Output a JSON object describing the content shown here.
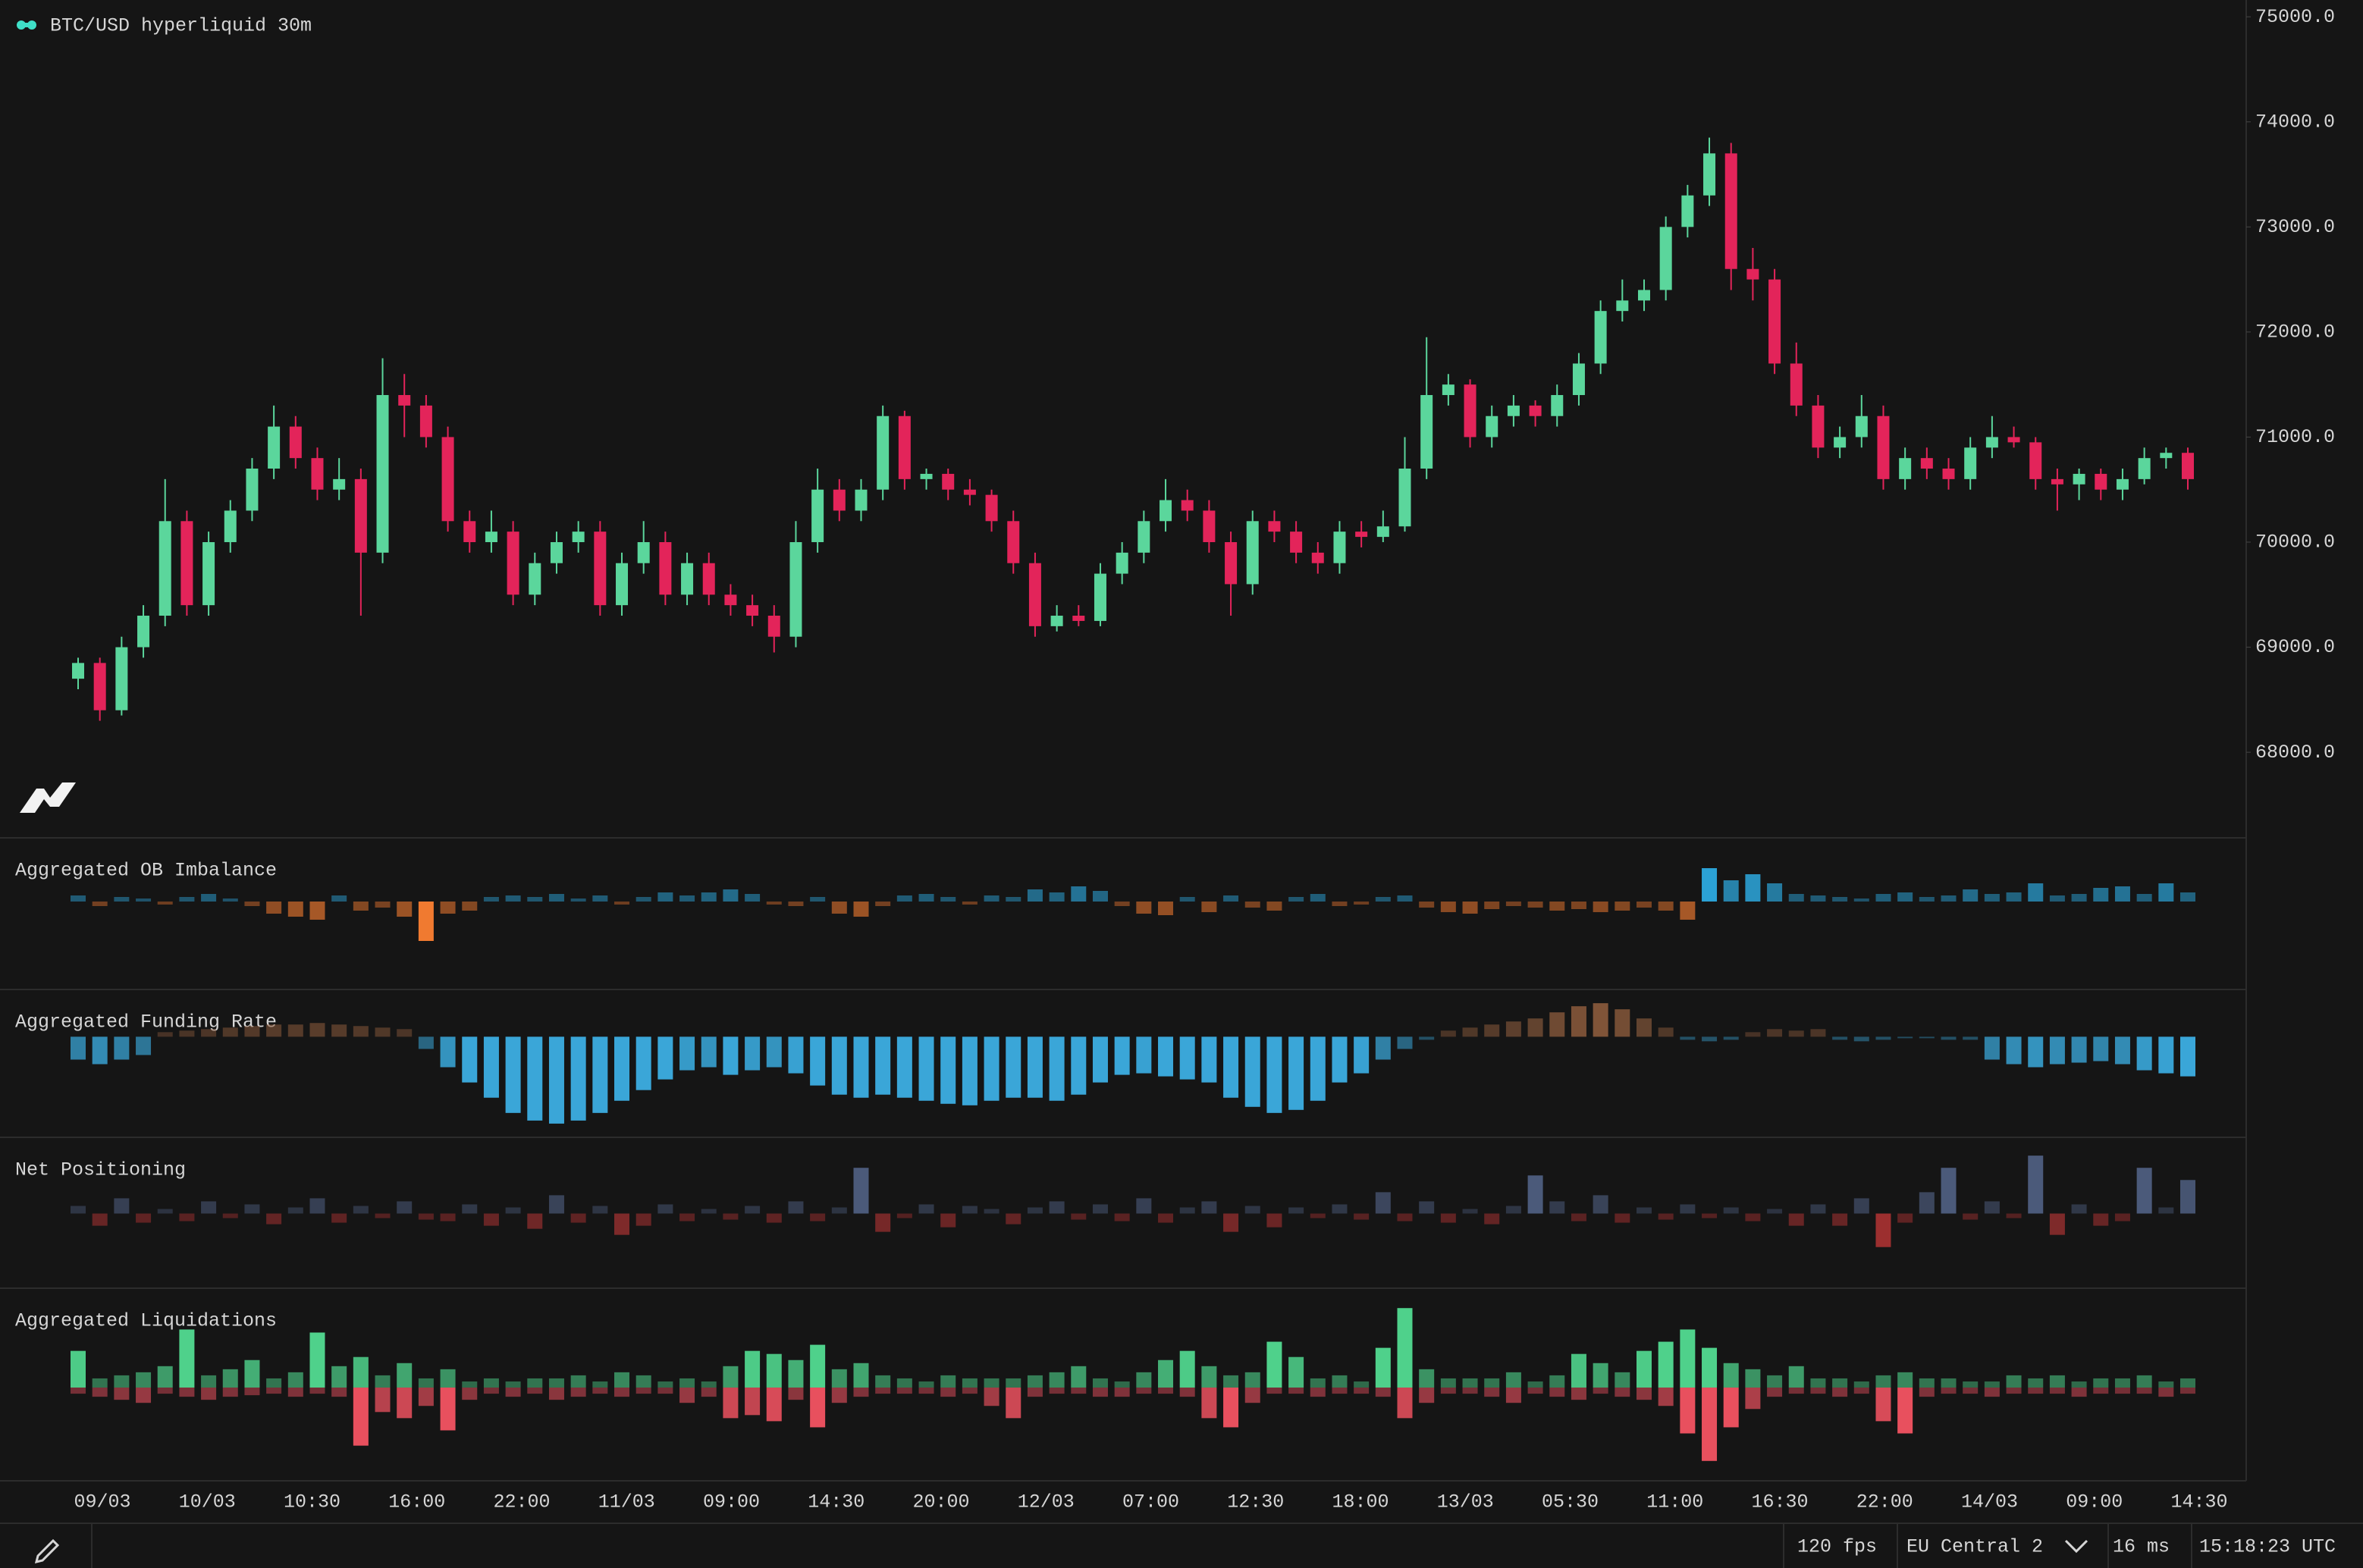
{
  "header": {
    "title": "BTC/USD hyperliquid 30m"
  },
  "status_bar": {
    "fps": "120 fps",
    "region": "EU Central 2",
    "latency": "16 ms",
    "clock": "15:18:23 UTC"
  },
  "chart_data": [
    {
      "type": "candlestick",
      "up_color": "#5bd69c",
      "down_color": "#e3245a",
      "ylim": [
        67200,
        75160
      ],
      "yticks": [
        {
          "value": 68000,
          "label": "68000.0"
        },
        {
          "value": 69000,
          "label": "69000.0"
        },
        {
          "value": 70000,
          "label": "70000.0"
        },
        {
          "value": 71000,
          "label": "71000.0"
        },
        {
          "value": 72000,
          "label": "72000.0"
        },
        {
          "value": 73000,
          "label": "73000.0"
        },
        {
          "value": 74000,
          "label": "74000.0"
        },
        {
          "value": 75000,
          "label": "75000.0"
        }
      ],
      "time_labels": [
        "09/03",
        "10/03",
        "10:30",
        "16:00",
        "22:00",
        "11/03",
        "09:00",
        "14:30",
        "20:00",
        "12/03",
        "07:00",
        "12:30",
        "18:00",
        "13/03",
        "05:30",
        "11:00",
        "16:30",
        "22:00",
        "14/03",
        "09:00",
        "14:30"
      ],
      "candles": [
        [
          68700,
          68900,
          68600,
          68850
        ],
        [
          68850,
          68900,
          68300,
          68400
        ],
        [
          68400,
          69100,
          68350,
          69000
        ],
        [
          69000,
          69400,
          68900,
          69300
        ],
        [
          69300,
          70600,
          69200,
          70200
        ],
        [
          70200,
          70300,
          69300,
          69400
        ],
        [
          69400,
          70100,
          69300,
          70000
        ],
        [
          70000,
          70400,
          69900,
          70300
        ],
        [
          70300,
          70800,
          70200,
          70700
        ],
        [
          70700,
          71300,
          70600,
          71100
        ],
        [
          71100,
          71200,
          70700,
          70800
        ],
        [
          70800,
          70900,
          70400,
          70500
        ],
        [
          70500,
          70800,
          70400,
          70600
        ],
        [
          70600,
          70700,
          69300,
          69900
        ],
        [
          69900,
          71750,
          69800,
          71400
        ],
        [
          71400,
          71600,
          71000,
          71300
        ],
        [
          71300,
          71400,
          70900,
          71000
        ],
        [
          71000,
          71100,
          70100,
          70200
        ],
        [
          70200,
          70300,
          69900,
          70000
        ],
        [
          70000,
          70300,
          69900,
          70100
        ],
        [
          70100,
          70200,
          69400,
          69500
        ],
        [
          69500,
          69900,
          69400,
          69800
        ],
        [
          69800,
          70100,
          69700,
          70000
        ],
        [
          70000,
          70200,
          69900,
          70100
        ],
        [
          70100,
          70200,
          69300,
          69400
        ],
        [
          69400,
          69900,
          69300,
          69800
        ],
        [
          69800,
          70200,
          69700,
          70000
        ],
        [
          70000,
          70100,
          69400,
          69500
        ],
        [
          69500,
          69900,
          69400,
          69800
        ],
        [
          69800,
          69900,
          69400,
          69500
        ],
        [
          69500,
          69600,
          69300,
          69400
        ],
        [
          69400,
          69500,
          69200,
          69300
        ],
        [
          69300,
          69400,
          68950,
          69100
        ],
        [
          69100,
          70200,
          69000,
          70000
        ],
        [
          70000,
          70700,
          69900,
          70500
        ],
        [
          70500,
          70600,
          70200,
          70300
        ],
        [
          70300,
          70600,
          70200,
          70500
        ],
        [
          70500,
          71300,
          70400,
          71200
        ],
        [
          71200,
          71250,
          70500,
          70600
        ],
        [
          70600,
          70700,
          70500,
          70650
        ],
        [
          70650,
          70700,
          70400,
          70500
        ],
        [
          70500,
          70600,
          70350,
          70450
        ],
        [
          70450,
          70500,
          70100,
          70200
        ],
        [
          70200,
          70300,
          69700,
          69800
        ],
        [
          69800,
          69900,
          69100,
          69200
        ],
        [
          69200,
          69400,
          69150,
          69300
        ],
        [
          69300,
          69400,
          69200,
          69250
        ],
        [
          69250,
          69800,
          69200,
          69700
        ],
        [
          69700,
          70000,
          69600,
          69900
        ],
        [
          69900,
          70300,
          69800,
          70200
        ],
        [
          70200,
          70600,
          70100,
          70400
        ],
        [
          70400,
          70500,
          70200,
          70300
        ],
        [
          70300,
          70400,
          69900,
          70000
        ],
        [
          70000,
          70100,
          69300,
          69600
        ],
        [
          69600,
          70300,
          69500,
          70200
        ],
        [
          70200,
          70300,
          70000,
          70100
        ],
        [
          70100,
          70200,
          69800,
          69900
        ],
        [
          69900,
          70000,
          69700,
          69800
        ],
        [
          69800,
          70200,
          69700,
          70100
        ],
        [
          70100,
          70200,
          69950,
          70050
        ],
        [
          70050,
          70300,
          70000,
          70150
        ],
        [
          70150,
          71000,
          70100,
          70700
        ],
        [
          70700,
          71950,
          70600,
          71400
        ],
        [
          71400,
          71600,
          71300,
          71500
        ],
        [
          71500,
          71550,
          70900,
          71000
        ],
        [
          71000,
          71300,
          70900,
          71200
        ],
        [
          71200,
          71400,
          71100,
          71300
        ],
        [
          71300,
          71350,
          71100,
          71200
        ],
        [
          71200,
          71500,
          71100,
          71400
        ],
        [
          71400,
          71800,
          71300,
          71700
        ],
        [
          71700,
          72300,
          71600,
          72200
        ],
        [
          72200,
          72500,
          72100,
          72300
        ],
        [
          72300,
          72500,
          72200,
          72400
        ],
        [
          72400,
          73100,
          72300,
          73000
        ],
        [
          73000,
          73400,
          72900,
          73300
        ],
        [
          73300,
          73850,
          73200,
          73700
        ],
        [
          73700,
          73800,
          72400,
          72600
        ],
        [
          72600,
          72800,
          72300,
          72500
        ],
        [
          72500,
          72600,
          71600,
          71700
        ],
        [
          71700,
          71900,
          71200,
          71300
        ],
        [
          71300,
          71400,
          70800,
          70900
        ],
        [
          70900,
          71100,
          70800,
          71000
        ],
        [
          71000,
          71400,
          70900,
          71200
        ],
        [
          71200,
          71300,
          70500,
          70600
        ],
        [
          70600,
          70900,
          70500,
          70800
        ],
        [
          70800,
          70900,
          70600,
          70700
        ],
        [
          70700,
          70800,
          70500,
          70600
        ],
        [
          70600,
          71000,
          70500,
          70900
        ],
        [
          70900,
          71200,
          70800,
          71000
        ],
        [
          71000,
          71100,
          70900,
          70950
        ],
        [
          70950,
          71000,
          70500,
          70600
        ],
        [
          70600,
          70700,
          70300,
          70550
        ],
        [
          70550,
          70700,
          70400,
          70650
        ],
        [
          70650,
          70700,
          70400,
          70500
        ],
        [
          70500,
          70700,
          70400,
          70600
        ],
        [
          70600,
          70900,
          70550,
          70800
        ],
        [
          70800,
          70900,
          70700,
          70850
        ],
        [
          70850,
          70900,
          70500,
          70600
        ]
      ]
    },
    {
      "type": "bar",
      "title": "Aggregated OB Imbalance",
      "pos_color": "#2eaee6",
      "neg_color": "#f07a30",
      "ylim": [
        -58,
        42
      ],
      "values": [
        4,
        -3,
        3,
        2,
        -2,
        3,
        5,
        2,
        -3,
        -8,
        -10,
        -12,
        4,
        -6,
        -4,
        -10,
        -26,
        -8,
        -6,
        3,
        4,
        3,
        5,
        2,
        4,
        -2,
        3,
        6,
        4,
        6,
        8,
        5,
        -2,
        -3,
        3,
        -8,
        -10,
        -3,
        4,
        5,
        3,
        -2,
        4,
        3,
        8,
        6,
        10,
        7,
        -3,
        -8,
        -9,
        3,
        -7,
        4,
        -4,
        -6,
        3,
        5,
        -3,
        -2,
        3,
        4,
        -4,
        -7,
        -8,
        -5,
        -3,
        -4,
        -6,
        -5,
        -7,
        -6,
        -4,
        -6,
        -12,
        22,
        14,
        18,
        12,
        5,
        4,
        3,
        2,
        5,
        6,
        3,
        4,
        8,
        5,
        6,
        12,
        4,
        5,
        9,
        10,
        5,
        12,
        6
      ]
    },
    {
      "type": "bar",
      "title": "Aggregated Funding Rate",
      "pos_color": "#8a5a3c",
      "neg_color": "#3aa6d8",
      "ylim": [
        -66,
        31
      ],
      "values": [
        -15,
        -18,
        -15,
        -12,
        3,
        4,
        5,
        6,
        7,
        8,
        8,
        9,
        8,
        7,
        6,
        5,
        -8,
        -20,
        -30,
        -40,
        -50,
        -55,
        -57,
        -55,
        -50,
        -42,
        -35,
        -28,
        -22,
        -20,
        -25,
        -22,
        -20,
        -24,
        -32,
        -38,
        -40,
        -38,
        -40,
        -42,
        -44,
        -45,
        -42,
        -40,
        -40,
        -42,
        -38,
        -30,
        -25,
        -24,
        -26,
        -28,
        -30,
        -40,
        -46,
        -50,
        -48,
        -42,
        -30,
        -24,
        -15,
        -8,
        -2,
        4,
        6,
        8,
        10,
        12,
        16,
        20,
        22,
        18,
        12,
        6,
        -2,
        -3,
        -2,
        3,
        5,
        4,
        5,
        -2,
        -3,
        -2,
        -1,
        -1,
        -2,
        -2,
        -15,
        -18,
        -20,
        -18,
        -17,
        -16,
        -18,
        -22,
        -24,
        -26
      ]
    },
    {
      "type": "bar",
      "title": "Net Positioning",
      "pos_color": "#4b5a7a",
      "neg_color": "#a83232",
      "ylim": [
        -49,
        50
      ],
      "values": [
        5,
        -8,
        10,
        -6,
        3,
        -5,
        8,
        -3,
        6,
        -7,
        4,
        10,
        -6,
        5,
        -3,
        8,
        -4,
        -5,
        6,
        -8,
        4,
        -10,
        12,
        -6,
        5,
        -14,
        -8,
        6,
        -5,
        3,
        -4,
        5,
        -6,
        8,
        -5,
        4,
        30,
        -12,
        -3,
        6,
        -9,
        5,
        3,
        -7,
        4,
        8,
        -4,
        6,
        -5,
        10,
        -6,
        4,
        8,
        -12,
        5,
        -9,
        4,
        -3,
        6,
        -4,
        14,
        -5,
        8,
        -6,
        3,
        -7,
        5,
        25,
        8,
        -5,
        12,
        -6,
        4,
        -4,
        6,
        -3,
        4,
        -5,
        3,
        -8,
        6,
        -8,
        10,
        -22,
        -6,
        14,
        30,
        -4,
        8,
        -3,
        38,
        -14,
        6,
        -8,
        -5,
        30,
        4,
        22
      ]
    },
    {
      "type": "bar",
      "title": "Aggregated Liquidations",
      "ylim": [
        -61,
        65
      ],
      "series": [
        {
          "color": "#4fd18b",
          "values": [
            24,
            6,
            8,
            10,
            14,
            38,
            8,
            12,
            18,
            6,
            10,
            36,
            14,
            20,
            8,
            16,
            6,
            12,
            4,
            6,
            4,
            6,
            6,
            8,
            4,
            10,
            8,
            4,
            6,
            4,
            14,
            24,
            22,
            18,
            28,
            12,
            16,
            8,
            6,
            4,
            8,
            6,
            6,
            6,
            8,
            10,
            14,
            6,
            4,
            10,
            18,
            24,
            14,
            8,
            10,
            30,
            20,
            6,
            8,
            4,
            26,
            52,
            12,
            6,
            6,
            6,
            10,
            4,
            8,
            22,
            16,
            10,
            24,
            30,
            38,
            26,
            16,
            12,
            8,
            14,
            6,
            6,
            4,
            8,
            10,
            6,
            6,
            4,
            4,
            8,
            6,
            8,
            4,
            6,
            6,
            8,
            4,
            6
          ]
        },
        {
          "color": "#e8505e",
          "values": [
            -4,
            -6,
            -8,
            -10,
            -4,
            -6,
            -8,
            -6,
            -5,
            -4,
            -6,
            -4,
            -6,
            -38,
            -16,
            -20,
            -12,
            -28,
            -8,
            -4,
            -6,
            -4,
            -8,
            -6,
            -4,
            -6,
            -4,
            -4,
            -10,
            -6,
            -20,
            -18,
            -22,
            -8,
            -26,
            -10,
            -6,
            -4,
            -4,
            -4,
            -6,
            -4,
            -12,
            -20,
            -6,
            -4,
            -4,
            -6,
            -6,
            -4,
            -4,
            -6,
            -20,
            -26,
            -10,
            -4,
            -4,
            -6,
            -4,
            -4,
            -6,
            -20,
            -10,
            -4,
            -4,
            -6,
            -10,
            -4,
            -6,
            -8,
            -4,
            -6,
            -8,
            -12,
            -30,
            -48,
            -26,
            -14,
            -6,
            -4,
            -4,
            -6,
            -4,
            -22,
            -30,
            -6,
            -4,
            -4,
            -6,
            -4,
            -4,
            -4,
            -6,
            -4,
            -4,
            -4,
            -6,
            -4
          ]
        }
      ]
    }
  ]
}
